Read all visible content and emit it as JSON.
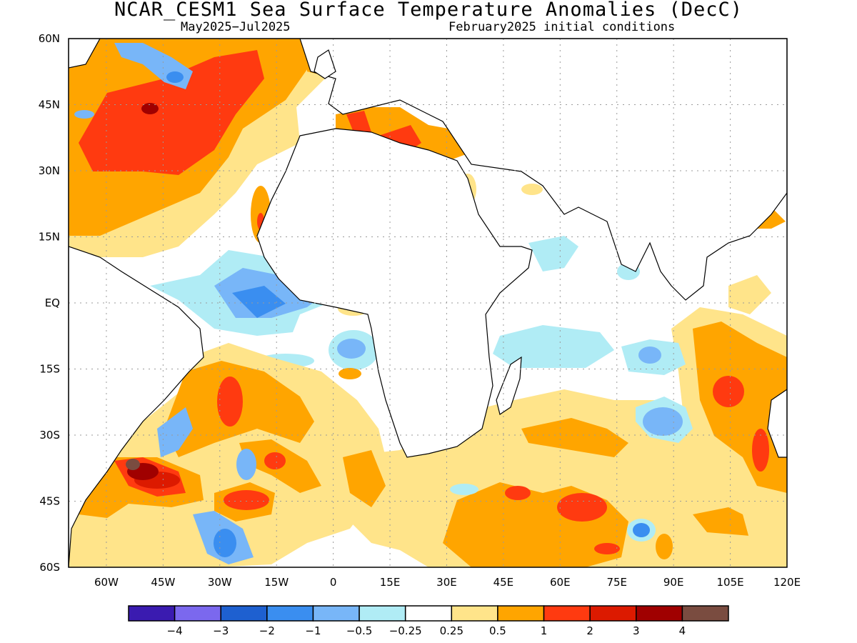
{
  "title": "NCAR_CESM1 Sea Surface Temperature Anomalies (DecC)",
  "subtitle_left": "May2025−Jul2025",
  "subtitle_right": "February2025 initial conditions",
  "map": {
    "lon_range": [
      -70,
      120
    ],
    "lat_range": [
      -60,
      60
    ],
    "grid": true,
    "lon_tick_labels": [
      "60W",
      "45W",
      "30W",
      "15W",
      "0",
      "15E",
      "30E",
      "45E",
      "60E",
      "75E",
      "90E",
      "105E",
      "120E"
    ],
    "lat_tick_labels": [
      "60N",
      "45N",
      "30N",
      "15N",
      "EQ",
      "15S",
      "30S",
      "45S",
      "60S"
    ]
  },
  "colorbar": {
    "colors": [
      "#3a1bb0",
      "#7b68ee",
      "#1e60d0",
      "#3a8ef0",
      "#78b6f8",
      "#b0ecf5",
      "#ffffff",
      "#ffe48a",
      "#ffa500",
      "#ff3a10",
      "#dc1a00",
      "#a00000",
      "#7a4c40"
    ],
    "labels": [
      "−4",
      "−3",
      "−2",
      "−1",
      "−0.5",
      "−0.25",
      "0.25",
      "0.5",
      "1",
      "2",
      "3",
      "4"
    ]
  }
}
